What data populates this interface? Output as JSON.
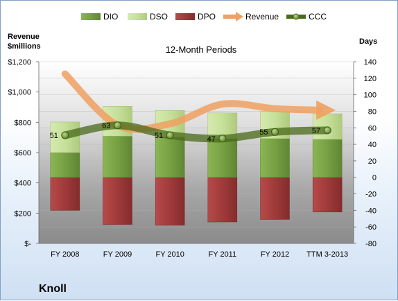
{
  "chart_data": {
    "type": "bar",
    "title": "12-Month Periods",
    "company": "Knoll",
    "categories": [
      "FY 2008",
      "FY 2009",
      "FY 2010",
      "FY 2011",
      "FY 2012",
      "TTM 3-2013"
    ],
    "ylabel_left": [
      "Revenue",
      "$millions"
    ],
    "ylabel_right": "Days",
    "y_left_ticks": [
      "$-",
      "$200",
      "$400",
      "$600",
      "$800",
      "$1,000",
      "$1,200"
    ],
    "ylim_left": [
      0,
      1200
    ],
    "y_right_ticks": [
      "-80",
      "-60",
      "-40",
      "-20",
      "0",
      "20",
      "40",
      "60",
      "80",
      "100",
      "120",
      "140"
    ],
    "ylim_right": [
      -80,
      140
    ],
    "legend": [
      "DIO",
      "DSO",
      "DPO",
      "Revenue",
      "CCC"
    ],
    "legend_position": "top",
    "series": [
      {
        "name": "DIO",
        "axis": "right",
        "values": [
          30,
          50,
          49,
          47,
          47,
          46
        ]
      },
      {
        "name": "DSO",
        "axis": "right",
        "values": [
          37,
          36,
          32,
          31,
          33,
          31
        ]
      },
      {
        "name": "DPO",
        "axis": "right",
        "values": [
          -40,
          -57,
          -58,
          -54,
          -51,
          -42
        ]
      },
      {
        "name": "Revenue",
        "axis": "left",
        "values": [
          1120,
          780,
          790,
          920,
          890,
          880
        ]
      },
      {
        "name": "CCC",
        "axis": "right",
        "values": [
          51,
          63,
          51,
          47,
          55,
          57
        ]
      }
    ],
    "ccc_labels": [
      "51",
      "63",
      "51",
      "47",
      "55",
      "57"
    ],
    "colors": {
      "DIO": "#77a043",
      "DSO": "#c6e09a",
      "DPO": "#a03a3a",
      "Revenue": "#f0a060",
      "CCC": "#4a6a1a"
    }
  }
}
